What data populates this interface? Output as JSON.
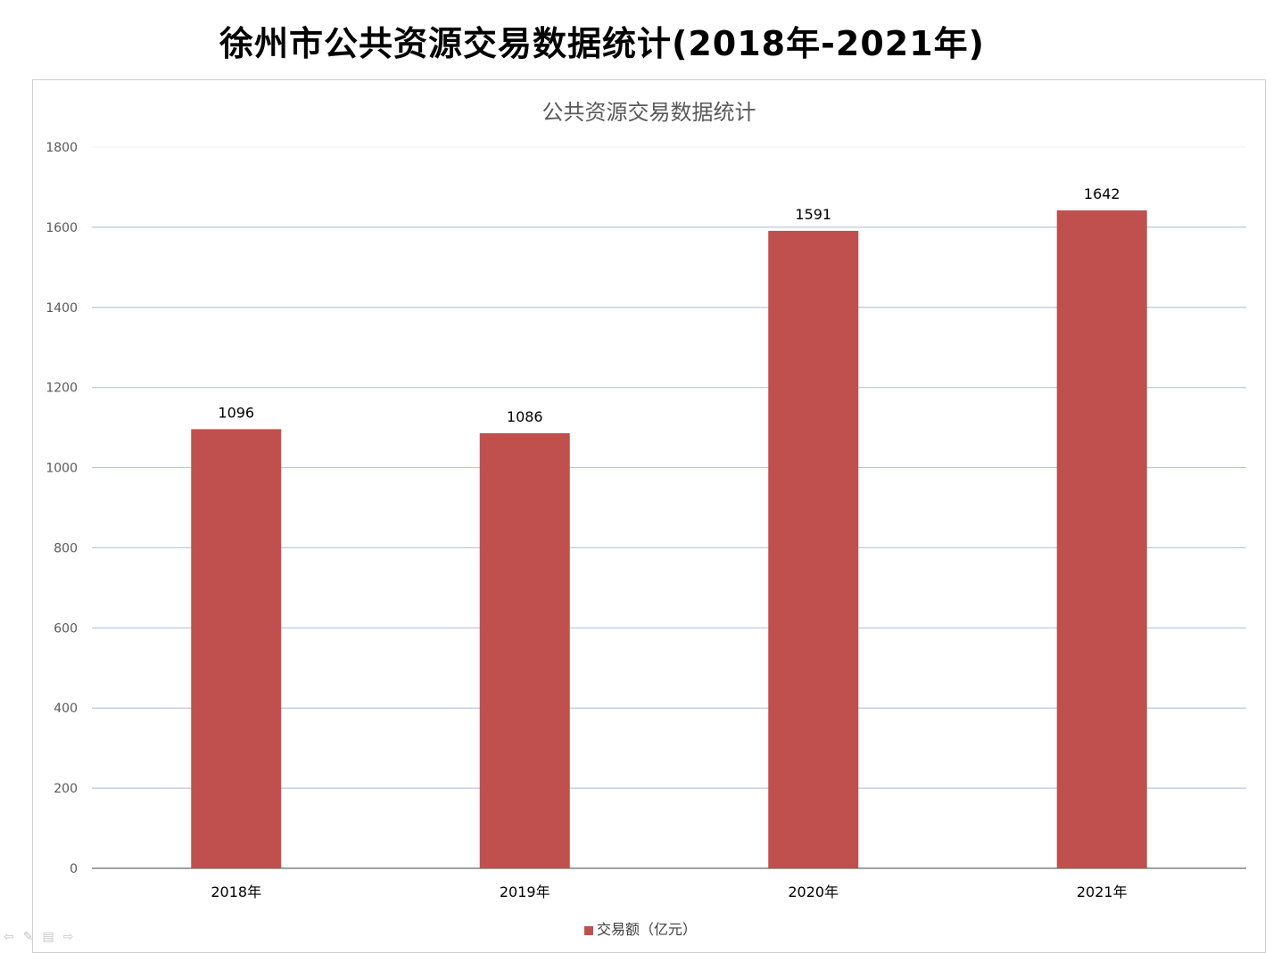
{
  "page_title": "徐州市公共资源交易数据统计(2018年-2021年)",
  "colors": {
    "bar": "#c0504d",
    "grid": "#b8c7dc",
    "axis": "#808080"
  },
  "nav_icons": [
    "arrow-left-icon",
    "pen-icon",
    "menu-icon",
    "arrow-right-icon"
  ],
  "chart_data": {
    "type": "bar",
    "title": "公共资源交易数据统计",
    "categories": [
      "2018年",
      "2019年",
      "2020年",
      "2021年"
    ],
    "series": [
      {
        "name": "交易额（亿元）",
        "values": [
          1096,
          1086,
          1591,
          1642
        ]
      }
    ],
    "ylim": [
      0,
      1800
    ],
    "yticks": [
      0,
      200,
      400,
      600,
      800,
      1000,
      1200,
      1400,
      1600,
      1800
    ],
    "xlabel": "",
    "ylabel": "",
    "grid": true,
    "legend_position": "bottom",
    "data_labels": true
  }
}
